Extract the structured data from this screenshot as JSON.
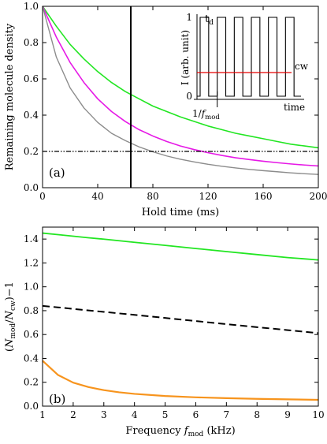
{
  "chart_data": [
    {
      "type": "line",
      "panel_label": "(a)",
      "xlabel": "Hold time (ms)",
      "ylabel": "Remaining molecule density",
      "xlim": [
        0,
        200
      ],
      "ylim": [
        0,
        1.0
      ],
      "xticks": [
        0,
        40,
        80,
        120,
        160,
        200
      ],
      "yticks": [
        0,
        0.2,
        0.4,
        0.6,
        0.8,
        1.0
      ],
      "xtick_labels": [
        "0",
        "40",
        "80",
        "120",
        "160",
        "200"
      ],
      "ytick_labels": [
        "0.0",
        "0.2",
        "0.4",
        "0.6",
        "0.8",
        "1.0"
      ],
      "grid": false,
      "x": [
        0,
        10,
        20,
        30,
        40,
        50,
        60,
        70,
        80,
        90,
        100,
        110,
        120,
        130,
        140,
        150,
        160,
        170,
        180,
        190,
        200
      ],
      "series": [
        {
          "color": "#22e622",
          "width": 1.6,
          "values": [
            1.0,
            0.89,
            0.79,
            0.71,
            0.64,
            0.58,
            0.53,
            0.49,
            0.45,
            0.42,
            0.39,
            0.365,
            0.34,
            0.32,
            0.3,
            0.285,
            0.27,
            0.255,
            0.24,
            0.23,
            0.22
          ]
        },
        {
          "color": "#e619e6",
          "width": 1.6,
          "values": [
            1.0,
            0.83,
            0.69,
            0.58,
            0.49,
            0.42,
            0.365,
            0.32,
            0.285,
            0.255,
            0.23,
            0.21,
            0.193,
            0.178,
            0.165,
            0.155,
            0.146,
            0.138,
            0.131,
            0.125,
            0.12
          ]
        },
        {
          "color": "#8c8c8c",
          "width": 1.4,
          "values": [
            1.0,
            0.72,
            0.55,
            0.44,
            0.36,
            0.3,
            0.26,
            0.225,
            0.198,
            0.175,
            0.157,
            0.142,
            0.129,
            0.118,
            0.109,
            0.101,
            0.094,
            0.088,
            0.082,
            0.077,
            0.073
          ]
        }
      ],
      "hline": {
        "y": 0.2,
        "style": "dash-dot",
        "color": "#000000"
      },
      "vline": {
        "x": 64,
        "color": "#000000"
      },
      "inset": {
        "xlabel": "time",
        "ylabel": "I (arb. unit)",
        "ytick_labels": [
          "0",
          "1"
        ],
        "td_label": "t",
        "td_sub": "d",
        "cw_label": "cw",
        "period_label_prefix": "1/",
        "period_label_var": "f",
        "period_label_sub": "mod",
        "cw_level": 0.3,
        "cw_color": "#e60000",
        "pulses": 6
      }
    },
    {
      "type": "line",
      "panel_label": "(b)",
      "xlabel_prefix": "Frequency ",
      "xlabel_var": "f",
      "xlabel_sub": "mod",
      "xlabel_suffix": " (kHz)",
      "ylabel_open": "(",
      "ylabel_var1": "N",
      "ylabel_sub1": "mod",
      "ylabel_slash": "/",
      "ylabel_var2": "N",
      "ylabel_sub2": "cw",
      "ylabel_close": ")−1",
      "xlim": [
        1,
        10
      ],
      "ylim": [
        0,
        1.5
      ],
      "xticks": [
        1,
        2,
        3,
        4,
        5,
        6,
        7,
        8,
        9,
        10
      ],
      "yticks": [
        0,
        0.2,
        0.4,
        0.6,
        0.8,
        1.0,
        1.2,
        1.4
      ],
      "xtick_labels": [
        "1",
        "2",
        "3",
        "4",
        "5",
        "6",
        "7",
        "8",
        "9",
        "10"
      ],
      "ytick_labels": [
        "0.0",
        "0.2",
        "0.4",
        "0.6",
        "0.8",
        "1.0",
        "1.2",
        "1.4"
      ],
      "grid": false,
      "x": [
        1,
        1.5,
        2,
        2.5,
        3,
        3.5,
        4,
        5,
        6,
        7,
        8,
        9,
        10
      ],
      "series": [
        {
          "color": "#22e622",
          "width": 1.8,
          "dash": "none",
          "values": [
            1.45,
            1.437,
            1.424,
            1.411,
            1.399,
            1.386,
            1.373,
            1.347,
            1.321,
            1.295,
            1.27,
            1.245,
            1.225
          ]
        },
        {
          "color": "#000000",
          "width": 2.0,
          "dash": "9,5",
          "values": [
            0.84,
            0.828,
            0.815,
            0.802,
            0.79,
            0.777,
            0.765,
            0.739,
            0.713,
            0.687,
            0.662,
            0.637,
            0.612
          ]
        },
        {
          "color": "#f7941d",
          "width": 2.2,
          "dash": "none",
          "values": [
            0.38,
            0.262,
            0.197,
            0.16,
            0.134,
            0.116,
            0.103,
            0.085,
            0.074,
            0.067,
            0.061,
            0.057,
            0.053
          ]
        }
      ]
    }
  ]
}
